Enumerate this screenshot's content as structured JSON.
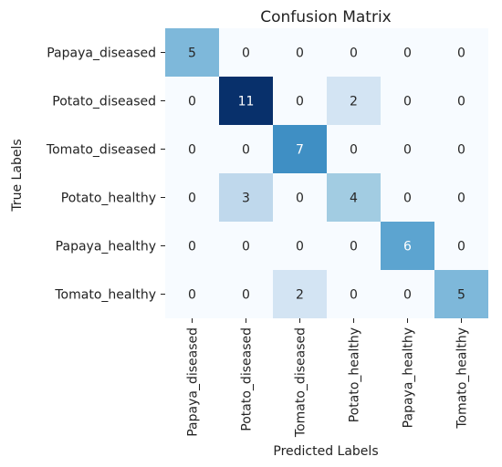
{
  "chart_data": {
    "type": "heatmap",
    "title": "Confusion Matrix",
    "xlabel": "Predicted Labels",
    "ylabel": "True Labels",
    "row_labels": [
      "Papaya_diseased",
      "Potato_diseased",
      "Tomato_diseased",
      "Potato_healthy",
      "Papaya_healthy",
      "Tomato_healthy"
    ],
    "col_labels": [
      "Papaya_diseased",
      "Potato_diseased",
      "Tomato_diseased",
      "Potato_healthy",
      "Papaya_healthy",
      "Tomato_healthy"
    ],
    "values": [
      [
        5,
        0,
        0,
        0,
        0,
        0
      ],
      [
        0,
        11,
        0,
        2,
        0,
        0
      ],
      [
        0,
        0,
        7,
        0,
        0,
        0
      ],
      [
        0,
        3,
        0,
        4,
        0,
        0
      ],
      [
        0,
        0,
        0,
        0,
        6,
        0
      ],
      [
        0,
        0,
        2,
        0,
        0,
        5
      ]
    ],
    "colormap": "Blues",
    "vmin": 0,
    "vmax": 11,
    "colorbar": false
  }
}
